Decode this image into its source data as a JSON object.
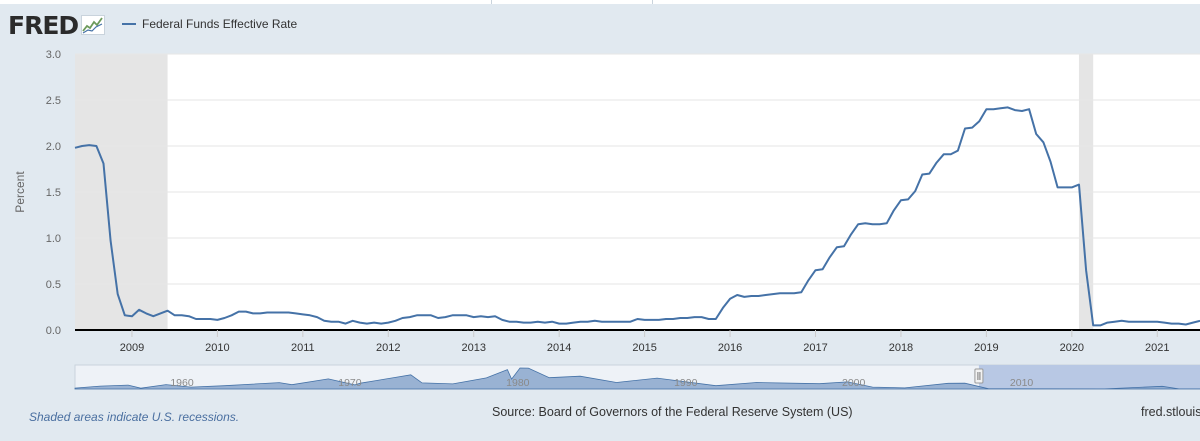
{
  "brand": {
    "logo_text": "FRED"
  },
  "colors": {
    "series": "#4572a7",
    "recession": "#e5e5e5",
    "background": "#e1e9f0",
    "plot_background": "#ffffff",
    "navigator_fill": "#8aa7cc",
    "navigator_selection": "#b8c8e4"
  },
  "chart_data": {
    "type": "line",
    "title": "",
    "ylabel": "Percent",
    "xlabel": "",
    "ylim": [
      0,
      3.0
    ],
    "xlim": [
      "2008-05",
      "2021-07"
    ],
    "yticks": [
      "0.0",
      "0.5",
      "1.0",
      "1.5",
      "2.0",
      "2.5",
      "3.0"
    ],
    "xticks": [
      "2009",
      "2010",
      "2011",
      "2012",
      "2013",
      "2014",
      "2015",
      "2016",
      "2017",
      "2018",
      "2019",
      "2020",
      "2021"
    ],
    "grid": true,
    "legend_position": "top-left",
    "recessions": [
      [
        "2008-05",
        "2009-06"
      ],
      [
        "2020-02",
        "2020-04"
      ]
    ],
    "series": [
      {
        "name": "Federal Funds Effective Rate",
        "points": [
          [
            "2008-05",
            1.98
          ],
          [
            "2008-06",
            2.0
          ],
          [
            "2008-07",
            2.01
          ],
          [
            "2008-08",
            2.0
          ],
          [
            "2008-09",
            1.81
          ],
          [
            "2008-10",
            0.97
          ],
          [
            "2008-11",
            0.39
          ],
          [
            "2008-12",
            0.16
          ],
          [
            "2009-01",
            0.15
          ],
          [
            "2009-02",
            0.22
          ],
          [
            "2009-03",
            0.18
          ],
          [
            "2009-04",
            0.15
          ],
          [
            "2009-05",
            0.18
          ],
          [
            "2009-06",
            0.21
          ],
          [
            "2009-07",
            0.16
          ],
          [
            "2009-08",
            0.16
          ],
          [
            "2009-09",
            0.15
          ],
          [
            "2009-10",
            0.12
          ],
          [
            "2009-11",
            0.12
          ],
          [
            "2009-12",
            0.12
          ],
          [
            "2010-01",
            0.11
          ],
          [
            "2010-02",
            0.13
          ],
          [
            "2010-03",
            0.16
          ],
          [
            "2010-04",
            0.2
          ],
          [
            "2010-05",
            0.2
          ],
          [
            "2010-06",
            0.18
          ],
          [
            "2010-07",
            0.18
          ],
          [
            "2010-08",
            0.19
          ],
          [
            "2010-09",
            0.19
          ],
          [
            "2010-10",
            0.19
          ],
          [
            "2010-11",
            0.19
          ],
          [
            "2010-12",
            0.18
          ],
          [
            "2011-01",
            0.17
          ],
          [
            "2011-02",
            0.16
          ],
          [
            "2011-03",
            0.14
          ],
          [
            "2011-04",
            0.1
          ],
          [
            "2011-05",
            0.09
          ],
          [
            "2011-06",
            0.09
          ],
          [
            "2011-07",
            0.07
          ],
          [
            "2011-08",
            0.1
          ],
          [
            "2011-09",
            0.08
          ],
          [
            "2011-10",
            0.07
          ],
          [
            "2011-11",
            0.08
          ],
          [
            "2011-12",
            0.07
          ],
          [
            "2012-01",
            0.08
          ],
          [
            "2012-02",
            0.1
          ],
          [
            "2012-03",
            0.13
          ],
          [
            "2012-04",
            0.14
          ],
          [
            "2012-05",
            0.16
          ],
          [
            "2012-06",
            0.16
          ],
          [
            "2012-07",
            0.16
          ],
          [
            "2012-08",
            0.13
          ],
          [
            "2012-09",
            0.14
          ],
          [
            "2012-10",
            0.16
          ],
          [
            "2012-11",
            0.16
          ],
          [
            "2012-12",
            0.16
          ],
          [
            "2013-01",
            0.14
          ],
          [
            "2013-02",
            0.15
          ],
          [
            "2013-03",
            0.14
          ],
          [
            "2013-04",
            0.15
          ],
          [
            "2013-05",
            0.11
          ],
          [
            "2013-06",
            0.09
          ],
          [
            "2013-07",
            0.09
          ],
          [
            "2013-08",
            0.08
          ],
          [
            "2013-09",
            0.08
          ],
          [
            "2013-10",
            0.09
          ],
          [
            "2013-11",
            0.08
          ],
          [
            "2013-12",
            0.09
          ],
          [
            "2014-01",
            0.07
          ],
          [
            "2014-02",
            0.07
          ],
          [
            "2014-03",
            0.08
          ],
          [
            "2014-04",
            0.09
          ],
          [
            "2014-05",
            0.09
          ],
          [
            "2014-06",
            0.1
          ],
          [
            "2014-07",
            0.09
          ],
          [
            "2014-08",
            0.09
          ],
          [
            "2014-09",
            0.09
          ],
          [
            "2014-10",
            0.09
          ],
          [
            "2014-11",
            0.09
          ],
          [
            "2014-12",
            0.12
          ],
          [
            "2015-01",
            0.11
          ],
          [
            "2015-02",
            0.11
          ],
          [
            "2015-03",
            0.11
          ],
          [
            "2015-04",
            0.12
          ],
          [
            "2015-05",
            0.12
          ],
          [
            "2015-06",
            0.13
          ],
          [
            "2015-07",
            0.13
          ],
          [
            "2015-08",
            0.14
          ],
          [
            "2015-09",
            0.14
          ],
          [
            "2015-10",
            0.12
          ],
          [
            "2015-11",
            0.12
          ],
          [
            "2015-12",
            0.24
          ],
          [
            "2016-01",
            0.34
          ],
          [
            "2016-02",
            0.38
          ],
          [
            "2016-03",
            0.36
          ],
          [
            "2016-04",
            0.37
          ],
          [
            "2016-05",
            0.37
          ],
          [
            "2016-06",
            0.38
          ],
          [
            "2016-07",
            0.39
          ],
          [
            "2016-08",
            0.4
          ],
          [
            "2016-09",
            0.4
          ],
          [
            "2016-10",
            0.4
          ],
          [
            "2016-11",
            0.41
          ],
          [
            "2016-12",
            0.54
          ],
          [
            "2017-01",
            0.65
          ],
          [
            "2017-02",
            0.66
          ],
          [
            "2017-03",
            0.79
          ],
          [
            "2017-04",
            0.9
          ],
          [
            "2017-05",
            0.91
          ],
          [
            "2017-06",
            1.04
          ],
          [
            "2017-07",
            1.15
          ],
          [
            "2017-08",
            1.16
          ],
          [
            "2017-09",
            1.15
          ],
          [
            "2017-10",
            1.15
          ],
          [
            "2017-11",
            1.16
          ],
          [
            "2017-12",
            1.3
          ],
          [
            "2018-01",
            1.41
          ],
          [
            "2018-02",
            1.42
          ],
          [
            "2018-03",
            1.51
          ],
          [
            "2018-04",
            1.69
          ],
          [
            "2018-05",
            1.7
          ],
          [
            "2018-06",
            1.82
          ],
          [
            "2018-07",
            1.91
          ],
          [
            "2018-08",
            1.91
          ],
          [
            "2018-09",
            1.95
          ],
          [
            "2018-10",
            2.19
          ],
          [
            "2018-11",
            2.2
          ],
          [
            "2018-12",
            2.27
          ],
          [
            "2019-01",
            2.4
          ],
          [
            "2019-02",
            2.4
          ],
          [
            "2019-03",
            2.41
          ],
          [
            "2019-04",
            2.42
          ],
          [
            "2019-05",
            2.39
          ],
          [
            "2019-06",
            2.38
          ],
          [
            "2019-07",
            2.4
          ],
          [
            "2019-08",
            2.13
          ],
          [
            "2019-09",
            2.04
          ],
          [
            "2019-10",
            1.83
          ],
          [
            "2019-11",
            1.55
          ],
          [
            "2019-12",
            1.55
          ],
          [
            "2020-01",
            1.55
          ],
          [
            "2020-02",
            1.58
          ],
          [
            "2020-03",
            0.65
          ],
          [
            "2020-04",
            0.05
          ],
          [
            "2020-05",
            0.05
          ],
          [
            "2020-06",
            0.08
          ],
          [
            "2020-07",
            0.09
          ],
          [
            "2020-08",
            0.1
          ],
          [
            "2020-09",
            0.09
          ],
          [
            "2020-10",
            0.09
          ],
          [
            "2020-11",
            0.09
          ],
          [
            "2020-12",
            0.09
          ],
          [
            "2021-01",
            0.09
          ],
          [
            "2021-02",
            0.08
          ],
          [
            "2021-03",
            0.07
          ],
          [
            "2021-04",
            0.07
          ],
          [
            "2021-05",
            0.06
          ],
          [
            "2021-06",
            0.08
          ],
          [
            "2021-07",
            0.1
          ]
        ]
      }
    ]
  },
  "navigator": {
    "labels": [
      "1960",
      "1970",
      "1980",
      "1990",
      "2000",
      "2010"
    ],
    "range_start": "1954-07",
    "range_end": "2021-07",
    "selection_start": "2008-05",
    "selection_end": "2021-07",
    "levels": [
      [
        "1954-07",
        0.8
      ],
      [
        "1956-01",
        2.6
      ],
      [
        "1957-09",
        3.5
      ],
      [
        "1958-06",
        0.7
      ],
      [
        "1959-12",
        4.0
      ],
      [
        "1961-06",
        1.7
      ],
      [
        "1963-06",
        3.0
      ],
      [
        "1966-09",
        5.8
      ],
      [
        "1967-06",
        3.9
      ],
      [
        "1969-08",
        9.2
      ],
      [
        "1971-03",
        3.7
      ],
      [
        "1971-07",
        5.3
      ],
      [
        "1973-07",
        10.4
      ],
      [
        "1974-07",
        12.9
      ],
      [
        "1975-03",
        5.5
      ],
      [
        "1977-01",
        4.6
      ],
      [
        "1979-01",
        10.1
      ],
      [
        "1980-04",
        17.6
      ],
      [
        "1980-07",
        9.0
      ],
      [
        "1981-01",
        19.1
      ],
      [
        "1981-07",
        19.0
      ],
      [
        "1982-10",
        10.3
      ],
      [
        "1984-08",
        11.6
      ],
      [
        "1986-10",
        5.9
      ],
      [
        "1989-03",
        9.9
      ],
      [
        "1992-09",
        3.0
      ],
      [
        "1995-02",
        5.9
      ],
      [
        "1998-11",
        4.8
      ],
      [
        "2000-07",
        6.5
      ],
      [
        "2002-01",
        1.7
      ],
      [
        "2003-12",
        1.0
      ],
      [
        "2006-07",
        5.2
      ],
      [
        "2007-07",
        5.3
      ],
      [
        "2008-12",
        0.16
      ],
      [
        "2015-11",
        0.12
      ],
      [
        "2019-04",
        2.42
      ],
      [
        "2020-04",
        0.05
      ],
      [
        "2021-07",
        0.1
      ]
    ],
    "level_max": 20
  },
  "footer": {
    "recession_note": "Shaded areas indicate U.S. recessions.",
    "source": "Source: Board of Governors of the Federal Reserve System (US)",
    "site": "fred.stlouis"
  }
}
